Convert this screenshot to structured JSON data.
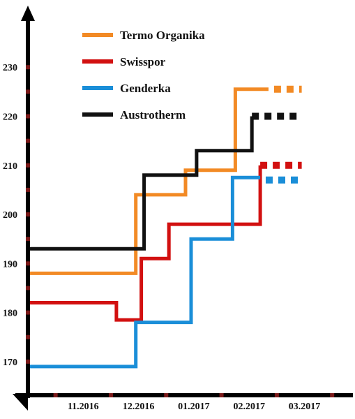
{
  "chart_data": {
    "type": "line",
    "step": true,
    "title": "",
    "xlabel": "",
    "ylabel": "",
    "y_ticks": [
      170,
      180,
      190,
      200,
      210,
      220,
      230
    ],
    "ylim": [
      164,
      238
    ],
    "x_ticks": [
      "11.2016",
      "12.2016",
      "01.2017",
      "02.2017",
      "03.2017"
    ],
    "x_domain": [
      0,
      5.8
    ],
    "legend": {
      "placement": "top"
    },
    "series": [
      {
        "name": "Termo Organika",
        "color": "#f28a25",
        "points": [
          [
            0,
            188
          ],
          [
            1.95,
            188
          ],
          [
            1.95,
            204
          ],
          [
            2.85,
            204
          ],
          [
            2.85,
            209
          ],
          [
            3.75,
            209
          ],
          [
            3.75,
            225.5
          ],
          [
            4.35,
            225.5
          ]
        ],
        "projection": [
          [
            4.45,
            225.5
          ],
          [
            4.95,
            225.5
          ]
        ]
      },
      {
        "name": "Swisspor",
        "color": "#d21010",
        "points": [
          [
            0,
            182
          ],
          [
            1.6,
            182
          ],
          [
            1.6,
            178.5
          ],
          [
            2.05,
            178.5
          ],
          [
            2.05,
            191
          ],
          [
            2.55,
            191
          ],
          [
            2.55,
            198
          ],
          [
            4.2,
            198
          ],
          [
            4.2,
            210
          ]
        ],
        "projection": [
          [
            4.2,
            210
          ],
          [
            4.95,
            210
          ]
        ]
      },
      {
        "name": "Genderka",
        "color": "#1a8ed8",
        "points": [
          [
            0,
            169
          ],
          [
            1.95,
            169
          ],
          [
            1.95,
            178
          ],
          [
            2.95,
            178
          ],
          [
            2.95,
            195
          ],
          [
            3.7,
            195
          ],
          [
            3.7,
            207.5
          ],
          [
            4.2,
            207.5
          ]
        ],
        "projection": [
          [
            4.3,
            207
          ],
          [
            4.95,
            207
          ]
        ]
      },
      {
        "name": "Austrotherm",
        "color": "#111111",
        "points": [
          [
            0,
            193
          ],
          [
            2.1,
            193
          ],
          [
            2.1,
            208
          ],
          [
            3.05,
            208
          ],
          [
            3.05,
            213
          ],
          [
            4.05,
            213
          ],
          [
            4.05,
            220
          ]
        ],
        "projection": [
          [
            4.05,
            220
          ],
          [
            4.95,
            220
          ]
        ]
      }
    ]
  }
}
